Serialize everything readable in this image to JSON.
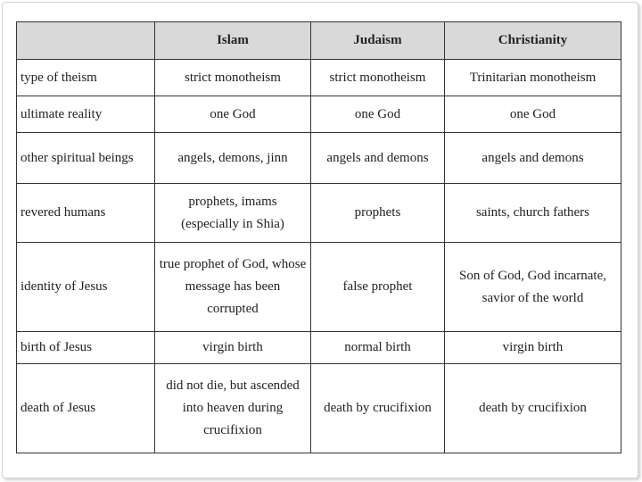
{
  "table": {
    "headers": [
      "",
      "Islam",
      "Judaism",
      "Christianity"
    ],
    "rows": [
      {
        "label": "type of theism",
        "cells": [
          "strict monotheism",
          "strict monotheism",
          "Trinitarian monotheism"
        ]
      },
      {
        "label": "ultimate reality",
        "cells": [
          "one God",
          "one God",
          "one God"
        ]
      },
      {
        "label": "other spiritual beings",
        "cells": [
          "angels, demons, jinn",
          "angels and demons",
          "angels and demons"
        ]
      },
      {
        "label": "revered humans",
        "cells": [
          "prophets, imams (especially in Shia)",
          "prophets",
          "saints, church fathers"
        ]
      },
      {
        "label": "identity of Jesus",
        "cells": [
          "true prophet of God, whose message has been corrupted",
          "false prophet",
          "Son of God, God incarnate, savior of the world"
        ]
      },
      {
        "label": "birth of Jesus",
        "cells": [
          "virgin birth",
          "normal birth",
          "virgin birth"
        ]
      },
      {
        "label": "death of Jesus",
        "cells": [
          "did not die, but ascended into heaven during crucifixion",
          "death by crucifixion",
          "death by crucifixion"
        ]
      }
    ]
  }
}
